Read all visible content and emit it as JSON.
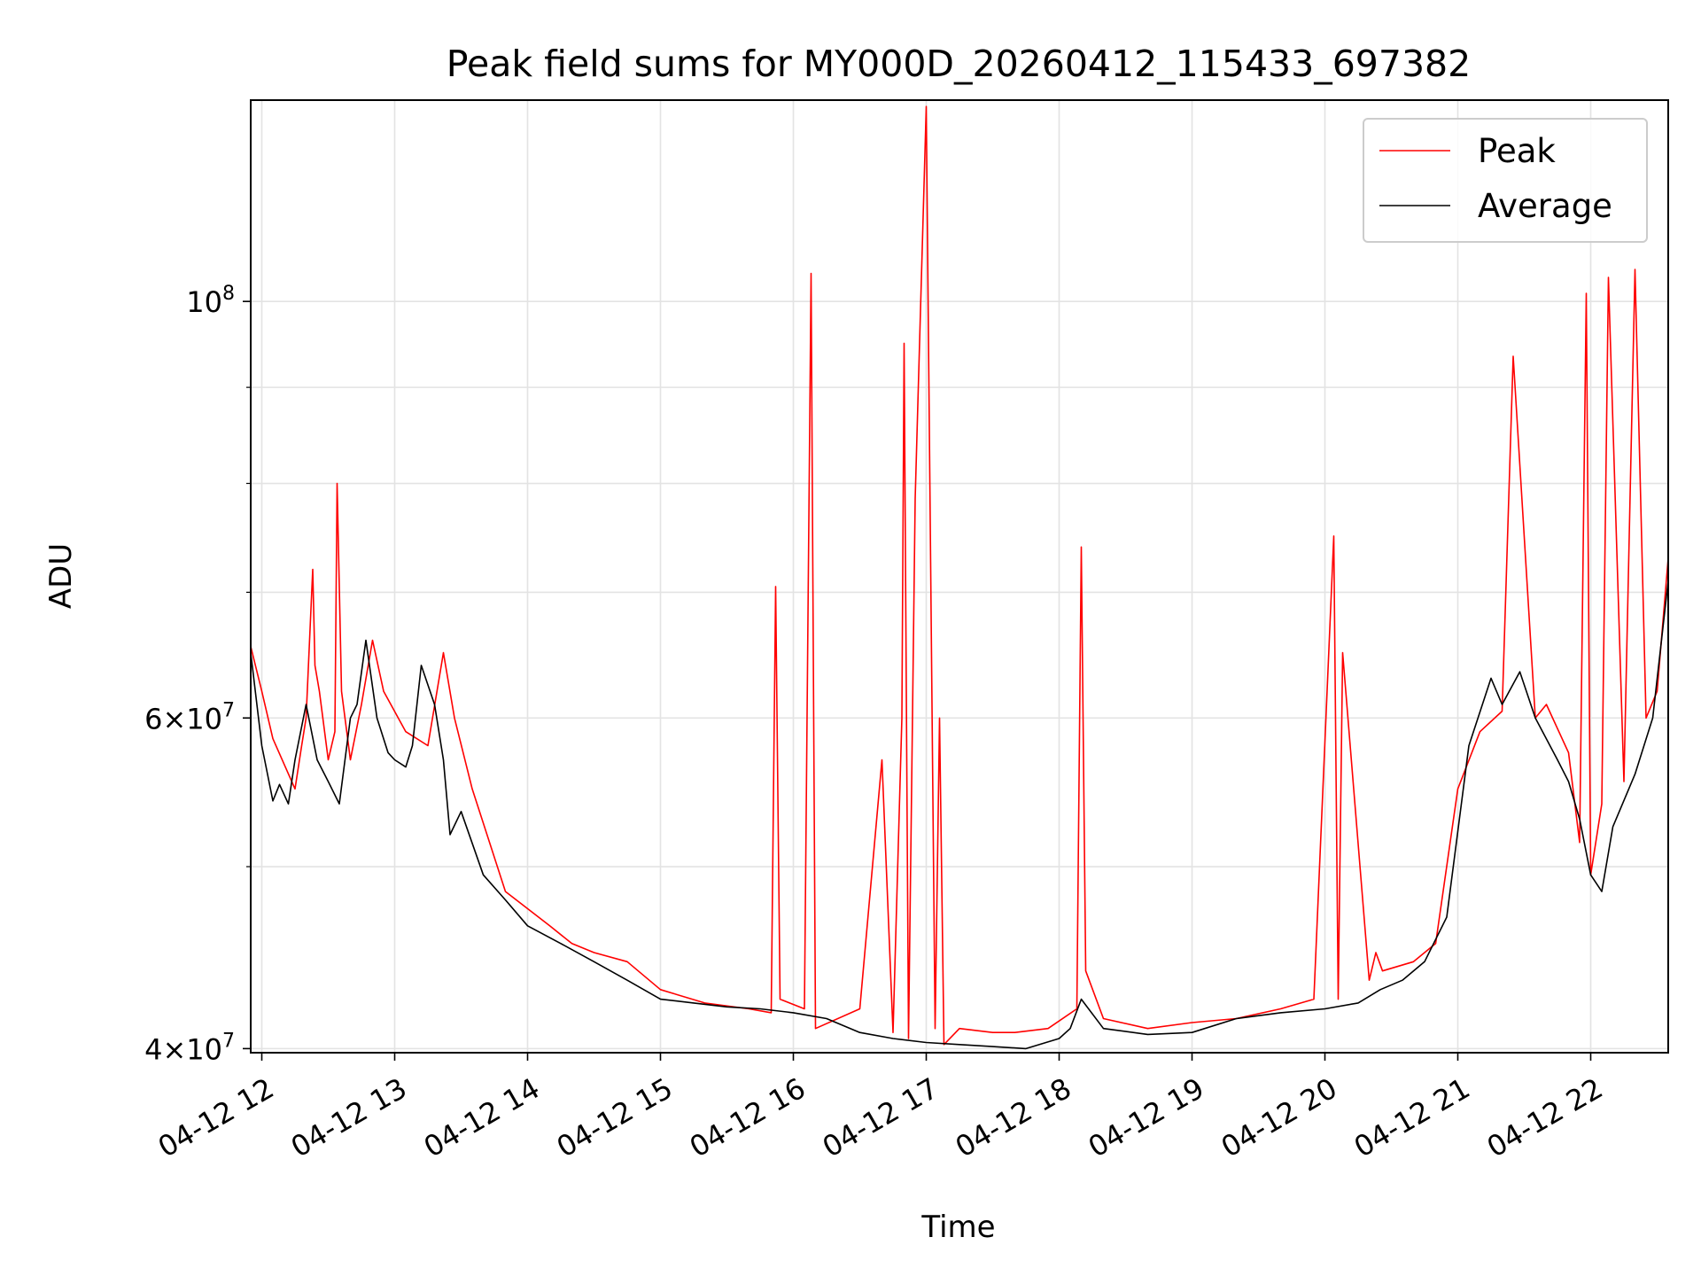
{
  "chart_data": {
    "type": "line",
    "title": "Peak field sums for MY000D_20260412_115433_697382",
    "xlabel": "Time",
    "ylabel": "ADU",
    "x_axis": {
      "type": "datetime",
      "range": [
        "2026-04-12 11:55",
        "2026-04-12 22:35"
      ],
      "ticks": [
        {
          "t": "2026-04-12 12:00",
          "label": "04-12 12"
        },
        {
          "t": "2026-04-12 13:00",
          "label": "04-12 13"
        },
        {
          "t": "2026-04-12 14:00",
          "label": "04-12 14"
        },
        {
          "t": "2026-04-12 15:00",
          "label": "04-12 15"
        },
        {
          "t": "2026-04-12 16:00",
          "label": "04-12 16"
        },
        {
          "t": "2026-04-12 17:00",
          "label": "04-12 17"
        },
        {
          "t": "2026-04-12 18:00",
          "label": "04-12 18"
        },
        {
          "t": "2026-04-12 19:00",
          "label": "04-12 19"
        },
        {
          "t": "2026-04-12 20:00",
          "label": "04-12 20"
        },
        {
          "t": "2026-04-12 21:00",
          "label": "04-12 21"
        },
        {
          "t": "2026-04-12 22:00",
          "label": "04-12 22"
        }
      ]
    },
    "y_axis": {
      "scale": "log",
      "range": [
        39800000,
        128000000
      ],
      "major_ticks": [
        {
          "v": 40000000,
          "base": "4×10",
          "exp": "7"
        },
        {
          "v": 60000000,
          "base": "6×10",
          "exp": "7"
        },
        {
          "v": 100000000,
          "base": "10",
          "exp": "8"
        }
      ],
      "minor_ticks": [
        50000000,
        70000000,
        80000000,
        90000000
      ]
    },
    "grid": true,
    "legend": {
      "position": "top-right"
    },
    "series": [
      {
        "name": "Peak",
        "color": "#ff0000",
        "x": [
          "2026-04-12 11:55",
          "2026-04-12 12:00",
          "2026-04-12 12:05",
          "2026-04-12 12:15",
          "2026-04-12 12:18",
          "2026-04-12 12:20",
          "2026-04-12 12:23",
          "2026-04-12 12:24",
          "2026-04-12 12:26",
          "2026-04-12 12:30",
          "2026-04-12 12:33",
          "2026-04-12 12:34",
          "2026-04-12 12:36",
          "2026-04-12 12:40",
          "2026-04-12 12:45",
          "2026-04-12 12:50",
          "2026-04-12 12:55",
          "2026-04-12 13:05",
          "2026-04-12 13:15",
          "2026-04-12 13:22",
          "2026-04-12 13:27",
          "2026-04-12 13:35",
          "2026-04-12 13:50",
          "2026-04-12 14:10",
          "2026-04-12 14:20",
          "2026-04-12 14:30",
          "2026-04-12 14:45",
          "2026-04-12 15:00",
          "2026-04-12 15:20",
          "2026-04-12 15:40",
          "2026-04-12 15:50",
          "2026-04-12 15:52",
          "2026-04-12 15:54",
          "2026-04-12 16:05",
          "2026-04-12 16:08",
          "2026-04-12 16:10",
          "2026-04-12 16:30",
          "2026-04-12 16:40",
          "2026-04-12 16:45",
          "2026-04-12 16:49",
          "2026-04-12 16:50",
          "2026-04-12 16:52",
          "2026-04-12 16:55",
          "2026-04-12 17:00",
          "2026-04-12 17:04",
          "2026-04-12 17:06",
          "2026-04-12 17:08",
          "2026-04-12 17:15",
          "2026-04-12 17:30",
          "2026-04-12 17:40",
          "2026-04-12 17:55",
          "2026-04-12 18:08",
          "2026-04-12 18:10",
          "2026-04-12 18:12",
          "2026-04-12 18:20",
          "2026-04-12 18:40",
          "2026-04-12 19:00",
          "2026-04-12 19:20",
          "2026-04-12 19:40",
          "2026-04-12 19:55",
          "2026-04-12 20:04",
          "2026-04-12 20:06",
          "2026-04-12 20:08",
          "2026-04-12 20:20",
          "2026-04-12 20:23",
          "2026-04-12 20:26",
          "2026-04-12 20:40",
          "2026-04-12 20:50",
          "2026-04-12 21:00",
          "2026-04-12 21:10",
          "2026-04-12 21:20",
          "2026-04-12 21:25",
          "2026-04-12 21:35",
          "2026-04-12 21:40",
          "2026-04-12 21:50",
          "2026-04-12 21:55",
          "2026-04-12 21:58",
          "2026-04-12 22:00",
          "2026-04-12 22:05",
          "2026-04-12 22:08",
          "2026-04-12 22:15",
          "2026-04-12 22:20",
          "2026-04-12 22:25",
          "2026-04-12 22:30",
          "2026-04-12 22:35"
        ],
        "y": [
          65500000,
          62000000,
          58500000,
          55000000,
          58000000,
          60000000,
          72000000,
          64000000,
          62000000,
          57000000,
          59000000,
          80000000,
          62000000,
          57000000,
          61000000,
          66000000,
          62000000,
          59000000,
          58000000,
          65000000,
          60000000,
          55000000,
          48500000,
          46500000,
          45500000,
          45000000,
          44500000,
          43000000,
          42300000,
          42000000,
          41800000,
          70500000,
          42500000,
          42000000,
          103500000,
          41000000,
          42000000,
          57000000,
          40800000,
          60000000,
          95000000,
          40500000,
          78500000,
          127000000,
          41000000,
          60000000,
          40200000,
          41000000,
          40800000,
          40800000,
          41000000,
          42000000,
          74000000,
          44000000,
          41500000,
          41000000,
          41300000,
          41500000,
          42000000,
          42500000,
          75000000,
          42500000,
          65000000,
          43500000,
          45000000,
          44000000,
          44500000,
          45500000,
          55000000,
          59000000,
          60500000,
          93500000,
          60000000,
          61000000,
          57500000,
          51500000,
          101000000,
          49500000,
          54000000,
          103000000,
          55500000,
          104000000,
          60000000,
          62000000,
          73000000
        ]
      },
      {
        "name": "Average",
        "color": "#000000",
        "x": [
          "2026-04-12 11:55",
          "2026-04-12 12:00",
          "2026-04-12 12:05",
          "2026-04-12 12:08",
          "2026-04-12 12:12",
          "2026-04-12 12:15",
          "2026-04-12 12:20",
          "2026-04-12 12:25",
          "2026-04-12 12:30",
          "2026-04-12 12:35",
          "2026-04-12 12:40",
          "2026-04-12 12:43",
          "2026-04-12 12:47",
          "2026-04-12 12:52",
          "2026-04-12 12:57",
          "2026-04-12 13:00",
          "2026-04-12 13:05",
          "2026-04-12 13:08",
          "2026-04-12 13:12",
          "2026-04-12 13:18",
          "2026-04-12 13:22",
          "2026-04-12 13:25",
          "2026-04-12 13:30",
          "2026-04-12 13:40",
          "2026-04-12 13:50",
          "2026-04-12 14:00",
          "2026-04-12 14:15",
          "2026-04-12 14:30",
          "2026-04-12 14:45",
          "2026-04-12 15:00",
          "2026-04-12 15:15",
          "2026-04-12 15:30",
          "2026-04-12 15:45",
          "2026-04-12 16:00",
          "2026-04-12 16:15",
          "2026-04-12 16:30",
          "2026-04-12 16:45",
          "2026-04-12 17:00",
          "2026-04-12 17:15",
          "2026-04-12 17:30",
          "2026-04-12 17:45",
          "2026-04-12 18:00",
          "2026-04-12 18:05",
          "2026-04-12 18:10",
          "2026-04-12 18:20",
          "2026-04-12 18:40",
          "2026-04-12 19:00",
          "2026-04-12 19:20",
          "2026-04-12 19:40",
          "2026-04-12 20:00",
          "2026-04-12 20:15",
          "2026-04-12 20:25",
          "2026-04-12 20:35",
          "2026-04-12 20:45",
          "2026-04-12 20:55",
          "2026-04-12 21:05",
          "2026-04-12 21:15",
          "2026-04-12 21:20",
          "2026-04-12 21:28",
          "2026-04-12 21:35",
          "2026-04-12 21:45",
          "2026-04-12 21:50",
          "2026-04-12 21:55",
          "2026-04-12 22:00",
          "2026-04-12 22:05",
          "2026-04-12 22:10",
          "2026-04-12 22:20",
          "2026-04-12 22:28",
          "2026-04-12 22:35"
        ],
        "y": [
          65000000,
          58000000,
          54200000,
          55300000,
          54000000,
          57000000,
          61000000,
          57000000,
          55500000,
          54000000,
          60000000,
          61000000,
          66000000,
          60000000,
          57500000,
          57000000,
          56500000,
          58000000,
          64000000,
          61000000,
          57000000,
          52000000,
          53500000,
          49500000,
          48000000,
          46500000,
          45500000,
          44500000,
          43500000,
          42500000,
          42300000,
          42100000,
          42000000,
          41800000,
          41500000,
          40800000,
          40500000,
          40300000,
          40200000,
          40100000,
          40000000,
          40500000,
          41000000,
          42500000,
          41000000,
          40700000,
          40800000,
          41500000,
          41800000,
          42000000,
          42300000,
          43000000,
          43500000,
          44500000,
          47000000,
          58000000,
          63000000,
          61000000,
          63500000,
          60000000,
          57000000,
          55500000,
          53000000,
          49500000,
          48500000,
          52500000,
          56000000,
          60000000,
          71000000
        ]
      }
    ]
  }
}
